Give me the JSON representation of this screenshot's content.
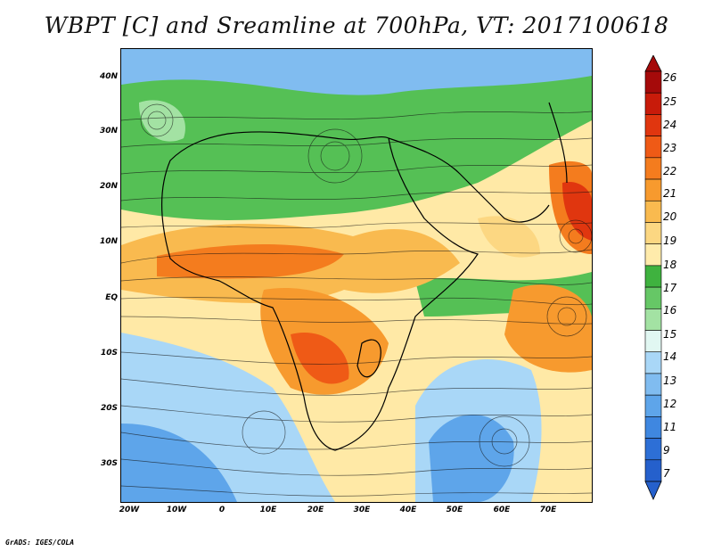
{
  "title": "WBPT [C] and Sreamline at 700hPa, VT: 2017100618",
  "credit": "GrADS: IGES/COLA",
  "axes": {
    "lat_labels": [
      "40N",
      "30N",
      "20N",
      "10N",
      "EQ",
      "10S",
      "20S",
      "30S"
    ],
    "lon_labels": [
      "20W",
      "10W",
      "0",
      "10E",
      "20E",
      "30E",
      "40E",
      "50E",
      "60E",
      "70E"
    ]
  },
  "colorbar": {
    "labels": [
      "26",
      "25",
      "24",
      "23",
      "22",
      "21",
      "20",
      "19",
      "18",
      "17",
      "16",
      "15",
      "14",
      "13",
      "12",
      "11",
      "9",
      "7"
    ],
    "colors": [
      "#a50a0a",
      "#c81b0a",
      "#e0360f",
      "#ef5a16",
      "#f47c1e",
      "#f79a2e",
      "#f9ba4f",
      "#fcd782",
      "#ffebab",
      "#3fb23f",
      "#66c766",
      "#a3e2a3",
      "#e1f7f2",
      "#a9d7f7",
      "#80bcf0",
      "#5ea5ea",
      "#3f87e0",
      "#2d6fd6",
      "#2560cc"
    ]
  },
  "field_colors": {
    "hot": "#f47c1e",
    "warm": "#f9ba4f",
    "mild": "#ffe9a6",
    "green": "#55c055",
    "lightgreen": "#a3e2a3",
    "cool": "#a9d7f7",
    "cold": "#5ea5ea"
  }
}
